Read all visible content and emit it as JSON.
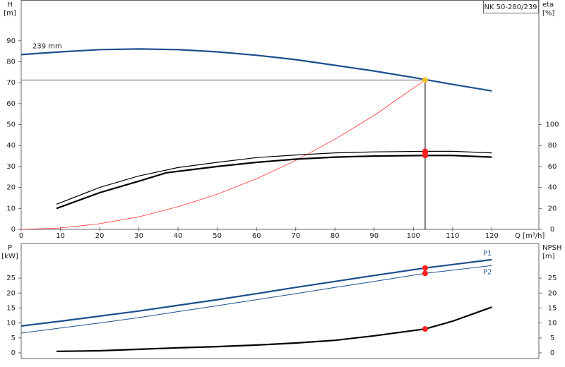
{
  "chart_data": [
    {
      "type": "line",
      "title": "NK 50-280/239",
      "y_label": "H",
      "y_unit": "[m]",
      "y2_label": "eta",
      "y2_unit": "[%]",
      "x_label": "Q [m³/h]",
      "xlim": [
        0,
        132
      ],
      "xticks": [
        0,
        10,
        20,
        30,
        40,
        50,
        60,
        70,
        80,
        90,
        100,
        110,
        120
      ],
      "ylim": [
        0,
        109.3
      ],
      "yticks": [
        0,
        10,
        20,
        30,
        40,
        50,
        60,
        70,
        80,
        90
      ],
      "y2lim": [
        0,
        218.6
      ],
      "y2ticks": [
        0,
        20,
        40,
        60,
        80,
        100
      ],
      "series": [
        {
          "name": "239 mm",
          "color": "#1c4f8c",
          "line_width": 2.2,
          "axis": "y",
          "x": [
            0,
            10,
            20,
            30,
            40,
            50,
            60,
            70,
            80,
            90,
            100,
            103,
            110,
            120
          ],
          "values": [
            83.4,
            84.7,
            85.8,
            86.1,
            85.8,
            84.7,
            83.1,
            81,
            78.3,
            75.6,
            72.5,
            71.5,
            69.2,
            66.1
          ]
        },
        {
          "color": "#ff3030",
          "line_width": 0.8,
          "axis": "y",
          "x": [
            0,
            10,
            20,
            30,
            40,
            50,
            60,
            70,
            80,
            90,
            103
          ],
          "values": [
            0,
            0.67,
            2.7,
            6,
            10.8,
            16.8,
            24.2,
            32.9,
            43,
            54.4,
            71.3
          ]
        },
        {
          "color": "#000000",
          "line_width": 1.2,
          "axis": "y2",
          "x": [
            9,
            20,
            30,
            40,
            50,
            60,
            70,
            80,
            90,
            103,
            110,
            120
          ],
          "values": [
            24,
            40,
            51,
            59,
            64,
            68.5,
            71,
            73,
            74,
            74.5,
            74.5,
            73
          ]
        },
        {
          "color": "#000000",
          "line_width": 2.2,
          "axis": "y2",
          "x": [
            9,
            20,
            30,
            37,
            50,
            60,
            70,
            80,
            90,
            103,
            110,
            120
          ],
          "values": [
            20,
            35,
            46,
            54,
            60,
            64,
            67,
            69,
            70,
            70.5,
            70.5,
            69
          ]
        }
      ],
      "markers": [
        {
          "x": 103,
          "y": 74.5,
          "axis": "y2",
          "color": "#ff2020"
        },
        {
          "x": 103,
          "y": 73.2,
          "axis": "y2",
          "color": "#ff2020"
        },
        {
          "x": 103,
          "y": 70.5,
          "axis": "y2",
          "color": "#ff2020"
        },
        {
          "x": 103,
          "y": 71.3,
          "axis": "y",
          "color": "#ffc020",
          "guides": true
        }
      ]
    },
    {
      "type": "line",
      "y_label": "P",
      "y_unit": "[kW]",
      "y2_label": "NPSH",
      "y2_unit": "[m]",
      "xlim": [
        0,
        132
      ],
      "ylim": [
        -1.9,
        36.6
      ],
      "yticks": [
        0,
        5,
        10,
        15,
        20,
        25
      ],
      "y2lim": [
        -1.9,
        36.6
      ],
      "y2ticks": [
        0,
        5,
        10,
        15,
        20,
        25
      ],
      "series": [
        {
          "name": "P1",
          "color": "#1c4f8c",
          "line_width": 2.2,
          "axis": "y",
          "x": [
            0,
            10,
            20,
            30,
            40,
            50,
            60,
            70,
            80,
            90,
            103,
            120
          ],
          "values": [
            9,
            10.6,
            12.3,
            14,
            15.9,
            17.8,
            19.8,
            21.9,
            23.9,
            25.9,
            28.4,
            31.2
          ]
        },
        {
          "name": "P2",
          "color": "#1c4f8c",
          "line_width": 1,
          "axis": "y",
          "x": [
            0,
            10,
            20,
            30,
            40,
            50,
            60,
            70,
            80,
            90,
            103,
            120
          ],
          "values": [
            6.6,
            8.3,
            10,
            11.8,
            13.8,
            15.8,
            17.8,
            19.8,
            21.9,
            23.9,
            26.6,
            29.2
          ]
        },
        {
          "color": "#000000",
          "line_width": 2.2,
          "axis": "y2",
          "x": [
            9,
            20,
            30,
            40,
            50,
            60,
            70,
            80,
            90,
            103,
            110,
            120
          ],
          "values": [
            0.5,
            0.7,
            1.2,
            1.7,
            2.1,
            2.6,
            3.3,
            4.2,
            5.7,
            8,
            10.6,
            15.3
          ]
        }
      ],
      "markers": [
        {
          "x": 103,
          "y": 28.4,
          "axis": "y",
          "color": "#ff2020"
        },
        {
          "x": 103,
          "y": 26.6,
          "axis": "y",
          "color": "#ff2020"
        },
        {
          "x": 103,
          "y": 8,
          "axis": "y2",
          "color": "#ff2020"
        }
      ]
    }
  ]
}
